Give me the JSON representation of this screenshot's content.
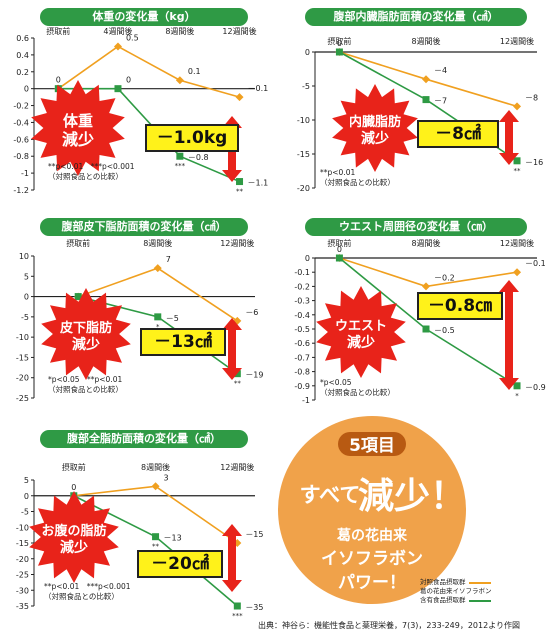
{
  "chart_data": [
    {
      "type": "line",
      "title": "体重の変化量（kg）",
      "categories": [
        "摂取前",
        "4週間後",
        "8週間後",
        "12週間後"
      ],
      "ylim": [
        -1.2,
        0.6
      ],
      "yticks": [
        0.6,
        0.4,
        0.2,
        0,
        -0.2,
        -0.4,
        -0.6,
        -0.8,
        -1,
        -1.2
      ],
      "series": [
        {
          "name": "対照食品摂取群",
          "values": [
            0,
            0.5,
            0.1,
            -0.1
          ],
          "labels": [
            "0",
            "0.5",
            "0.1",
            "－0.1"
          ],
          "color": "#f0a020"
        },
        {
          "name": "含有食品摂取群",
          "values": [
            0,
            0,
            -0.8,
            -1.1
          ],
          "labels": [
            "",
            "0",
            "－0.8",
            "－1.1"
          ],
          "color": "#2e9a44"
        }
      ],
      "significance": [
        "",
        "",
        "***",
        "**"
      ],
      "burst": [
        "体重",
        "減少"
      ],
      "box": "－1.0kg",
      "notes": [
        "**p<0.01　***p<0.001",
        "（対照食品との比較）"
      ]
    },
    {
      "type": "line",
      "title": "腹部内臓脂肪面積の変化量（㎠）",
      "categories": [
        "摂取前",
        "8週間後",
        "12週間後"
      ],
      "ylim": [
        -20,
        0
      ],
      "yticks": [
        0,
        -5,
        -10,
        -15,
        -20
      ],
      "series": [
        {
          "name": "対照食品摂取群",
          "values": [
            0,
            -4,
            -8
          ],
          "labels": [
            "0",
            "－4",
            "－8"
          ],
          "color": "#f0a020"
        },
        {
          "name": "含有食品摂取群",
          "values": [
            0,
            -7,
            -16
          ],
          "labels": [
            "",
            "－7",
            "－16"
          ],
          "color": "#2e9a44"
        }
      ],
      "significance": [
        "",
        "",
        "**"
      ],
      "burst": [
        "内臓脂肪",
        "減少"
      ],
      "box": "－8㎠",
      "notes": [
        "**p<0.01",
        "（対照食品との比較）"
      ]
    },
    {
      "type": "line",
      "title": "腹部皮下脂肪面積の変化量（㎠）",
      "categories": [
        "摂取前",
        "8週間後",
        "12週間後"
      ],
      "ylim": [
        -25,
        10
      ],
      "yticks": [
        10,
        5,
        0,
        -5,
        -10,
        -15,
        -20,
        -25
      ],
      "series": [
        {
          "name": "対照食品摂取群",
          "values": [
            0,
            7,
            -6
          ],
          "labels": [
            "",
            "7",
            "－6"
          ],
          "color": "#f0a020"
        },
        {
          "name": "含有食品摂取群",
          "values": [
            0,
            -5,
            -19
          ],
          "labels": [
            "",
            "－5",
            "－19"
          ],
          "color": "#2e9a44"
        }
      ],
      "significance": [
        "",
        "*",
        "**"
      ],
      "burst": [
        "皮下脂肪",
        "減少"
      ],
      "box": "－13㎠",
      "notes": [
        "*p<0.05　**p<0.01",
        "（対照食品との比較）"
      ]
    },
    {
      "type": "line",
      "title": "ウエスト周囲径の変化量（㎝）",
      "categories": [
        "摂取前",
        "8週間後",
        "12週間後"
      ],
      "ylim": [
        -1,
        0
      ],
      "yticks": [
        0,
        -0.1,
        -0.2,
        -0.3,
        -0.4,
        -0.5,
        -0.6,
        -0.7,
        -0.8,
        -0.9,
        -1
      ],
      "series": [
        {
          "name": "対照食品摂取群",
          "values": [
            0,
            -0.2,
            -0.1
          ],
          "labels": [
            "0",
            "－0.2",
            "－0.1"
          ],
          "color": "#f0a020"
        },
        {
          "name": "含有食品摂取群",
          "values": [
            0,
            -0.5,
            -0.9
          ],
          "labels": [
            "",
            "－0.5",
            "－0.9"
          ],
          "color": "#2e9a44"
        }
      ],
      "significance": [
        "",
        "",
        "*"
      ],
      "burst": [
        "ウエスト",
        "減少"
      ],
      "box": "－0.8㎝",
      "notes": [
        "*p<0.05",
        "（対照食品との比較）"
      ]
    },
    {
      "type": "line",
      "title": "腹部全脂肪面積の変化量（㎠）",
      "categories": [
        "摂取前",
        "8週間後",
        "12週間後"
      ],
      "ylim": [
        -35,
        5
      ],
      "yticks": [
        5,
        0,
        -5,
        -10,
        -15,
        -20,
        -25,
        -30,
        -35
      ],
      "series": [
        {
          "name": "対照食品摂取群",
          "values": [
            0,
            3,
            -15
          ],
          "labels": [
            "0",
            "3",
            "－15"
          ],
          "color": "#f0a020"
        },
        {
          "name": "含有食品摂取群",
          "values": [
            0,
            -13,
            -35
          ],
          "labels": [
            "",
            "－13",
            "－35"
          ],
          "color": "#2e9a44"
        }
      ],
      "significance": [
        "",
        "**",
        "***"
      ],
      "burst": [
        "お腹の脂肪",
        "減少"
      ],
      "box": "－20㎠",
      "notes": [
        "**p<0.01　***p<0.001",
        "（対照食品との比較）"
      ]
    }
  ],
  "summary": {
    "line1": "5項目",
    "line2a": "すべて",
    "line2b": "減少！",
    "line3": "葛の花由来",
    "line4": "イソフラボン",
    "line5": "パワー！"
  },
  "legend": [
    "対照食品摂取群",
    "葛の花由来イソフラボン",
    "含有食品摂取群"
  ],
  "source": "出典：神谷ら：機能性食品と薬理栄養，7(3)，233-249，2012より作図",
  "colors": {
    "orange": "#f0a020",
    "green": "#2e9a44",
    "red": "#e8231a",
    "yellow": "#fff21a"
  }
}
